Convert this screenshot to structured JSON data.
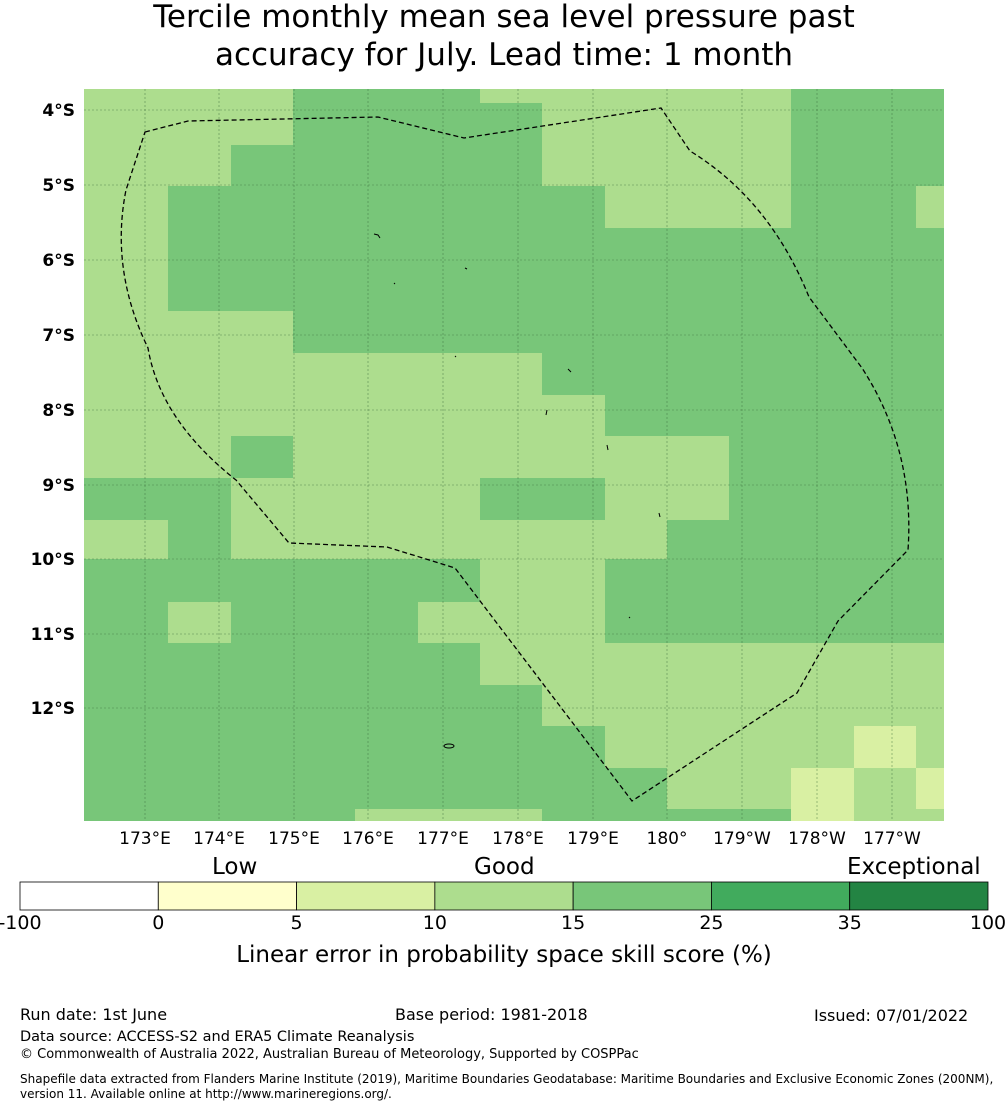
{
  "title": {
    "line1": "Tercile monthly mean sea level pressure past",
    "line2": "accuracy for July. Lead time: 1 month"
  },
  "map": {
    "lat_ticks": [
      "4°S",
      "5°S",
      "6°S",
      "7°S",
      "8°S",
      "9°S",
      "10°S",
      "11°S",
      "12°S"
    ],
    "lon_ticks": [
      "173°E",
      "174°E",
      "175°E",
      "176°E",
      "177°E",
      "178°E",
      "179°E",
      "180°",
      "179°W",
      "178°W",
      "177°W"
    ],
    "colors": {
      "c5": "#d9f0a3",
      "c10": "#addd8e",
      "c15": "#78c679",
      "grid": "#3a6b3a",
      "boundary": "#000000"
    },
    "regions": [
      {
        "skill": "10-15",
        "cells": [
          [
            0,
            0,
            6,
            7
          ],
          [
            6,
            0,
            1,
            3
          ],
          [
            6,
            4,
            1,
            7
          ],
          [
            6,
            9,
            1,
            3
          ],
          [
            6,
            13,
            1,
            1
          ],
          [
            7,
            0,
            7,
            1
          ],
          [
            8,
            0,
            3,
            1
          ],
          [
            9,
            0,
            6,
            1
          ],
          [
            10,
            0,
            9,
            2
          ],
          [
            11,
            1,
            11,
            3
          ],
          [
            12,
            6,
            8,
            3
          ],
          [
            13,
            9,
            4,
            3
          ]
        ]
      },
      {
        "skill": "5-10",
        "cells": [
          [
            12,
            11,
            1,
            2
          ],
          [
            13,
            12,
            2,
            3
          ],
          [
            14,
            13,
            1,
            1
          ],
          [
            15,
            11,
            2,
            1
          ]
        ]
      }
    ],
    "islands": [
      "Tuvalu atolls"
    ]
  },
  "colorbar": {
    "group_labels": [
      "Low",
      "Good",
      "Exceptional"
    ],
    "bins": [
      {
        "from": "-100",
        "to": "0",
        "color": "#ffffff"
      },
      {
        "from": "0",
        "to": "5",
        "color": "#ffffcc"
      },
      {
        "from": "5",
        "to": "10",
        "color": "#d9f0a3"
      },
      {
        "from": "10",
        "to": "15",
        "color": "#addd8e"
      },
      {
        "from": "15",
        "to": "25",
        "color": "#78c679"
      },
      {
        "from": "25",
        "to": "35",
        "color": "#41ab5d"
      },
      {
        "from": "35",
        "to": "100",
        "color": "#238443"
      }
    ],
    "ticks": [
      "-100",
      "0",
      "5",
      "10",
      "15",
      "25",
      "35",
      "100"
    ],
    "label": "Linear error in probability space skill score (%)"
  },
  "footer": {
    "run_date": "Run date: 1st June",
    "base_period": "Base period: 1981-2018",
    "issued": "Issued: 07/01/2022",
    "data_source": "Data source: ACCESS-S2 and ERA5 Climate Reanalysis",
    "copyright": "© Commonwealth of Australia 2022, Australian Bureau of Meteorology, Supported by COSPPac",
    "shapefile": "Shapefile data extracted from Flanders Marine Institute (2019), Maritime Boundaries Geodatabase: Maritime Boundaries and Exclusive Economic Zones (200NM), version 11. Available online at http://www.marineregions.org/."
  }
}
